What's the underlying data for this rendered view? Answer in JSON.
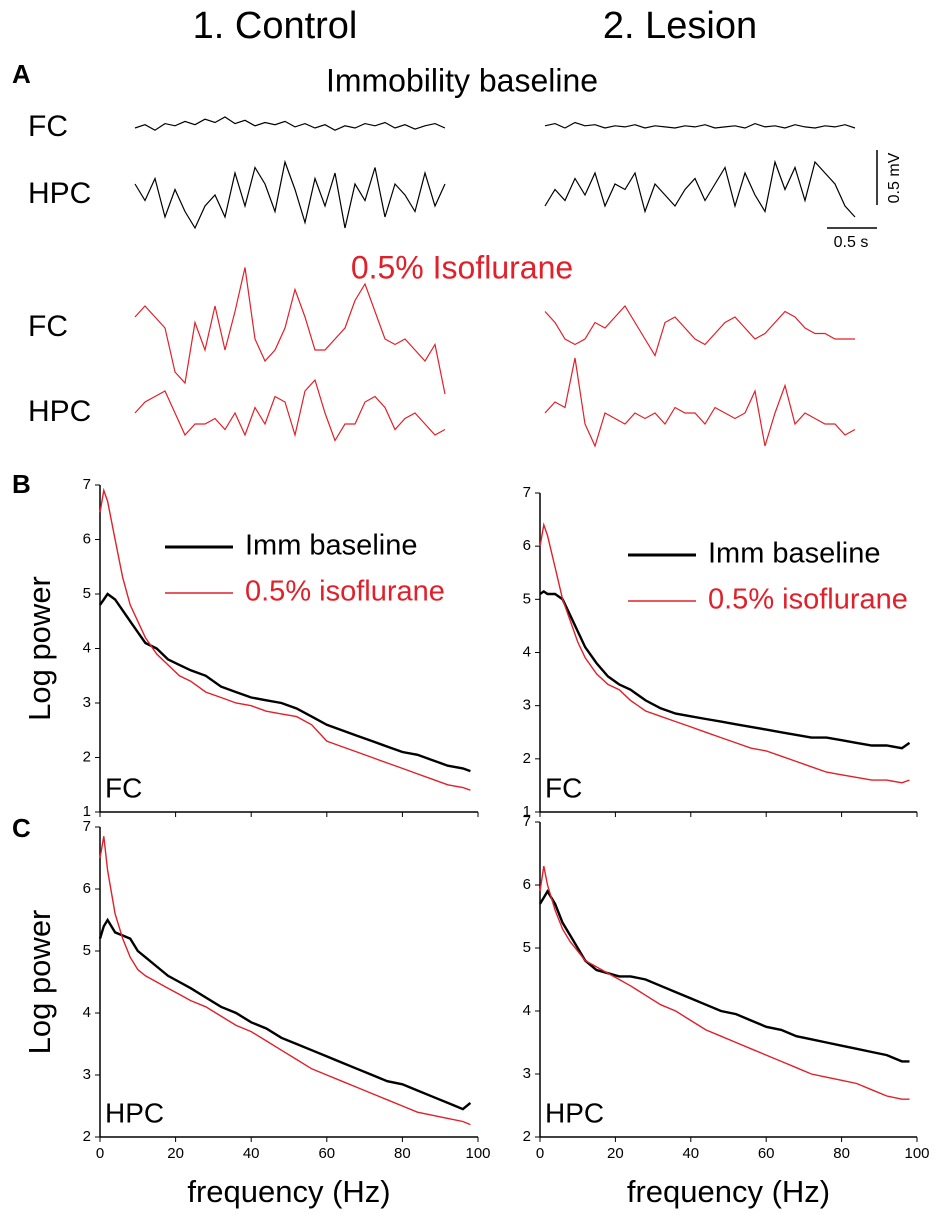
{
  "columns": [
    "1. Control",
    "2. Lesion"
  ],
  "panel_a": {
    "label": "A",
    "sections": [
      {
        "title": "Immobility baseline",
        "color": "#000000",
        "rows": [
          "FC",
          "HPC"
        ]
      },
      {
        "title": "0.5% Isoflurane",
        "color": "#e0202a",
        "rows": [
          "FC",
          "HPC"
        ]
      }
    ],
    "dt": 0.1,
    "traces": [
      {
        "column": 0,
        "section": 0,
        "row": 0,
        "values": [
          0,
          0.03,
          -0.02,
          0.04,
          0.02,
          0.06,
          0.03,
          0.08,
          0.05,
          0.1,
          0.04,
          0.07,
          0.02,
          0.05,
          0.03,
          0.06,
          0.01,
          0.04,
          0.0,
          0.03,
          -0.02,
          0.02,
          0.0,
          0.04,
          0.02,
          0.05,
          0.0,
          0.03,
          -0.01,
          0.02,
          0.04,
          0.0
        ]
      },
      {
        "column": 0,
        "section": 0,
        "row": 1,
        "values": [
          0.1,
          -0.05,
          0.15,
          -0.2,
          0.05,
          -0.15,
          -0.3,
          -0.1,
          0.0,
          -0.2,
          0.2,
          -0.1,
          0.25,
          0.1,
          -0.15,
          0.3,
          0.05,
          -0.25,
          0.15,
          -0.1,
          0.2,
          -0.3,
          0.1,
          -0.05,
          0.25,
          -0.2,
          0.1,
          0.0,
          -0.15,
          0.2,
          -0.1,
          0.1
        ]
      },
      {
        "column": 1,
        "section": 0,
        "row": 0,
        "values": [
          0.02,
          0.04,
          0.0,
          0.05,
          0.02,
          0.03,
          0.0,
          0.02,
          0.01,
          0.03,
          0.0,
          0.02,
          0.01,
          0.0,
          0.02,
          0.01,
          0.03,
          0.0,
          0.01,
          0.02,
          0.0,
          0.04,
          0.01,
          0.02,
          0.0,
          0.03,
          0.01,
          0.0,
          0.02,
          0.01,
          0.03,
          0.0
        ]
      },
      {
        "column": 1,
        "section": 0,
        "row": 1,
        "values": [
          -0.1,
          0.05,
          -0.05,
          0.15,
          0.0,
          0.2,
          -0.1,
          0.1,
          0.05,
          0.2,
          -0.15,
          0.1,
          0.0,
          -0.1,
          0.05,
          0.15,
          -0.05,
          0.1,
          0.25,
          -0.1,
          0.2,
          0.0,
          -0.15,
          0.3,
          0.05,
          0.25,
          -0.05,
          0.3,
          0.2,
          0.1,
          -0.1,
          -0.2
        ]
      },
      {
        "column": 0,
        "section": 1,
        "row": 0,
        "values": [
          0.1,
          0.2,
          0.1,
          0.0,
          -0.4,
          -0.5,
          0.05,
          -0.2,
          0.2,
          -0.2,
          0.15,
          0.55,
          -0.1,
          -0.3,
          -0.2,
          0.0,
          0.35,
          0.1,
          -0.2,
          -0.2,
          -0.1,
          0.0,
          0.25,
          0.4,
          0.15,
          -0.1,
          -0.15,
          -0.1,
          -0.2,
          -0.3,
          -0.15,
          -0.6
        ]
      },
      {
        "column": 0,
        "section": 1,
        "row": 1,
        "values": [
          0.0,
          0.1,
          0.15,
          0.2,
          0.0,
          -0.2,
          -0.1,
          -0.1,
          -0.05,
          -0.15,
          0.0,
          -0.2,
          0.05,
          -0.1,
          0.15,
          0.1,
          -0.2,
          0.2,
          0.3,
          0.0,
          -0.25,
          -0.1,
          -0.1,
          0.1,
          0.15,
          0.05,
          -0.15,
          -0.05,
          0.0,
          -0.1,
          -0.2,
          -0.15
        ]
      },
      {
        "column": 1,
        "section": 1,
        "row": 0,
        "values": [
          0.15,
          0.05,
          -0.1,
          -0.15,
          -0.1,
          0.05,
          0.0,
          0.1,
          0.2,
          0.05,
          -0.1,
          -0.25,
          0.05,
          0.1,
          0.0,
          -0.1,
          -0.15,
          -0.05,
          0.05,
          0.1,
          0.0,
          -0.1,
          -0.05,
          0.05,
          0.15,
          0.1,
          0.0,
          -0.05,
          -0.05,
          -0.1,
          -0.1,
          -0.1
        ]
      },
      {
        "column": 1,
        "section": 1,
        "row": 1,
        "values": [
          0.0,
          0.1,
          0.05,
          0.5,
          -0.1,
          -0.3,
          0.0,
          -0.05,
          -0.1,
          0.0,
          -0.05,
          0.0,
          -0.1,
          0.05,
          0.0,
          0.0,
          -0.1,
          0.05,
          0.0,
          -0.05,
          0.0,
          0.2,
          -0.3,
          0.0,
          0.25,
          -0.1,
          0.0,
          -0.05,
          -0.1,
          -0.1,
          -0.2,
          -0.15
        ]
      }
    ],
    "scale_bar": {
      "y_value": 0.5,
      "y_label": "0.5 mV",
      "x_value": 0.5,
      "x_label": "0.5 s"
    }
  },
  "panel_labels": [
    "B",
    "C"
  ],
  "chart_data": [
    {
      "type": "line",
      "annotation": "FC",
      "ylabel": "Log power",
      "legend": true,
      "xtick_labels": false,
      "xlim": [
        0,
        100
      ],
      "ylim": [
        1,
        7
      ],
      "xticks": [
        0,
        20,
        40,
        60,
        80,
        100
      ],
      "yticks": [
        1,
        2,
        3,
        4,
        5,
        6,
        7
      ],
      "x": [
        0,
        1,
        2,
        4,
        6,
        8,
        10,
        12,
        15,
        18,
        21,
        24,
        28,
        32,
        36,
        40,
        44,
        48,
        52,
        56,
        60,
        64,
        68,
        72,
        76,
        80,
        84,
        88,
        92,
        96,
        98
      ],
      "series": [
        {
          "name": "Imm baseline",
          "color": "#000000",
          "values": [
            4.8,
            4.9,
            5.0,
            4.9,
            4.7,
            4.5,
            4.3,
            4.1,
            4.0,
            3.8,
            3.7,
            3.6,
            3.5,
            3.3,
            3.2,
            3.1,
            3.05,
            3.0,
            2.9,
            2.75,
            2.6,
            2.5,
            2.4,
            2.3,
            2.2,
            2.1,
            2.05,
            1.95,
            1.85,
            1.8,
            1.75
          ]
        },
        {
          "name": "0.5% isoflurane",
          "color": "#e0202a",
          "values": [
            6.5,
            6.9,
            6.7,
            6.0,
            5.3,
            4.8,
            4.5,
            4.2,
            3.9,
            3.7,
            3.5,
            3.4,
            3.2,
            3.1,
            3.0,
            2.95,
            2.85,
            2.8,
            2.75,
            2.6,
            2.3,
            2.2,
            2.1,
            2.0,
            1.9,
            1.8,
            1.7,
            1.6,
            1.5,
            1.45,
            1.4
          ]
        }
      ]
    },
    {
      "type": "line",
      "annotation": "FC",
      "legend": true,
      "xtick_labels": false,
      "xlim": [
        0,
        100
      ],
      "ylim": [
        1,
        7
      ],
      "xticks": [
        0,
        20,
        40,
        60,
        80,
        100
      ],
      "yticks": [
        1,
        2,
        3,
        4,
        5,
        6,
        7
      ],
      "x": [
        0,
        1,
        2,
        4,
        6,
        8,
        10,
        12,
        15,
        18,
        21,
        24,
        28,
        32,
        36,
        40,
        44,
        48,
        52,
        56,
        60,
        64,
        68,
        72,
        76,
        80,
        84,
        88,
        92,
        96,
        98
      ],
      "series": [
        {
          "name": "Imm baseline",
          "color": "#000000",
          "values": [
            5.1,
            5.15,
            5.1,
            5.1,
            5.0,
            4.7,
            4.4,
            4.1,
            3.8,
            3.55,
            3.4,
            3.3,
            3.1,
            2.95,
            2.85,
            2.8,
            2.75,
            2.7,
            2.65,
            2.6,
            2.55,
            2.5,
            2.45,
            2.4,
            2.4,
            2.35,
            2.3,
            2.25,
            2.25,
            2.2,
            2.3
          ]
        },
        {
          "name": "0.5% isoflurane",
          "color": "#e0202a",
          "values": [
            6.0,
            6.4,
            6.2,
            5.6,
            5.0,
            4.6,
            4.2,
            3.9,
            3.6,
            3.4,
            3.3,
            3.1,
            2.9,
            2.8,
            2.7,
            2.6,
            2.5,
            2.4,
            2.3,
            2.2,
            2.15,
            2.05,
            1.95,
            1.85,
            1.75,
            1.7,
            1.65,
            1.6,
            1.6,
            1.55,
            1.6
          ]
        }
      ]
    },
    {
      "type": "line",
      "annotation": "HPC",
      "ylabel": "Log power",
      "xlabel": "frequency (Hz)",
      "legend": false,
      "xtick_labels": true,
      "xlim": [
        0,
        100
      ],
      "ylim": [
        2,
        7
      ],
      "xticks": [
        0,
        20,
        40,
        60,
        80,
        100
      ],
      "yticks": [
        2,
        3,
        4,
        5,
        6,
        7
      ],
      "x": [
        0,
        1,
        2,
        4,
        6,
        8,
        10,
        12,
        15,
        18,
        21,
        24,
        28,
        32,
        36,
        40,
        44,
        48,
        52,
        56,
        60,
        64,
        68,
        72,
        76,
        80,
        84,
        88,
        92,
        96,
        98
      ],
      "series": [
        {
          "name": "Imm baseline",
          "color": "#000000",
          "values": [
            5.2,
            5.4,
            5.5,
            5.3,
            5.25,
            5.2,
            5.0,
            4.9,
            4.75,
            4.6,
            4.5,
            4.4,
            4.25,
            4.1,
            4.0,
            3.85,
            3.75,
            3.6,
            3.5,
            3.4,
            3.3,
            3.2,
            3.1,
            3.0,
            2.9,
            2.85,
            2.75,
            2.65,
            2.55,
            2.45,
            2.55
          ]
        },
        {
          "name": "0.5% isoflurane",
          "color": "#e0202a",
          "values": [
            6.5,
            6.85,
            6.3,
            5.6,
            5.2,
            4.9,
            4.7,
            4.6,
            4.5,
            4.4,
            4.3,
            4.2,
            4.1,
            3.95,
            3.8,
            3.7,
            3.55,
            3.4,
            3.25,
            3.1,
            3.0,
            2.9,
            2.8,
            2.7,
            2.6,
            2.5,
            2.4,
            2.35,
            2.3,
            2.25,
            2.2
          ]
        }
      ]
    },
    {
      "type": "line",
      "annotation": "HPC",
      "xlabel": "frequency (Hz)",
      "legend": false,
      "xtick_labels": true,
      "xlim": [
        0,
        100
      ],
      "ylim": [
        2,
        7
      ],
      "xticks": [
        0,
        20,
        40,
        60,
        80,
        100
      ],
      "yticks": [
        2,
        3,
        4,
        5,
        6,
        7
      ],
      "x": [
        0,
        1,
        2,
        4,
        6,
        8,
        10,
        12,
        15,
        18,
        21,
        24,
        28,
        32,
        36,
        40,
        44,
        48,
        52,
        56,
        60,
        64,
        68,
        72,
        76,
        80,
        84,
        88,
        92,
        96,
        98
      ],
      "series": [
        {
          "name": "Imm baseline",
          "color": "#000000",
          "values": [
            5.7,
            5.8,
            5.9,
            5.7,
            5.4,
            5.2,
            5.0,
            4.8,
            4.65,
            4.6,
            4.55,
            4.55,
            4.5,
            4.4,
            4.3,
            4.2,
            4.1,
            4.0,
            3.95,
            3.85,
            3.75,
            3.7,
            3.6,
            3.55,
            3.5,
            3.45,
            3.4,
            3.35,
            3.3,
            3.2,
            3.2
          ]
        },
        {
          "name": "0.5% isoflurane",
          "color": "#e0202a",
          "values": [
            5.9,
            6.3,
            6.0,
            5.6,
            5.3,
            5.1,
            4.95,
            4.8,
            4.7,
            4.6,
            4.5,
            4.4,
            4.25,
            4.1,
            4.0,
            3.85,
            3.7,
            3.6,
            3.5,
            3.4,
            3.3,
            3.2,
            3.1,
            3.0,
            2.95,
            2.9,
            2.85,
            2.75,
            2.65,
            2.6,
            2.6
          ]
        }
      ]
    }
  ]
}
